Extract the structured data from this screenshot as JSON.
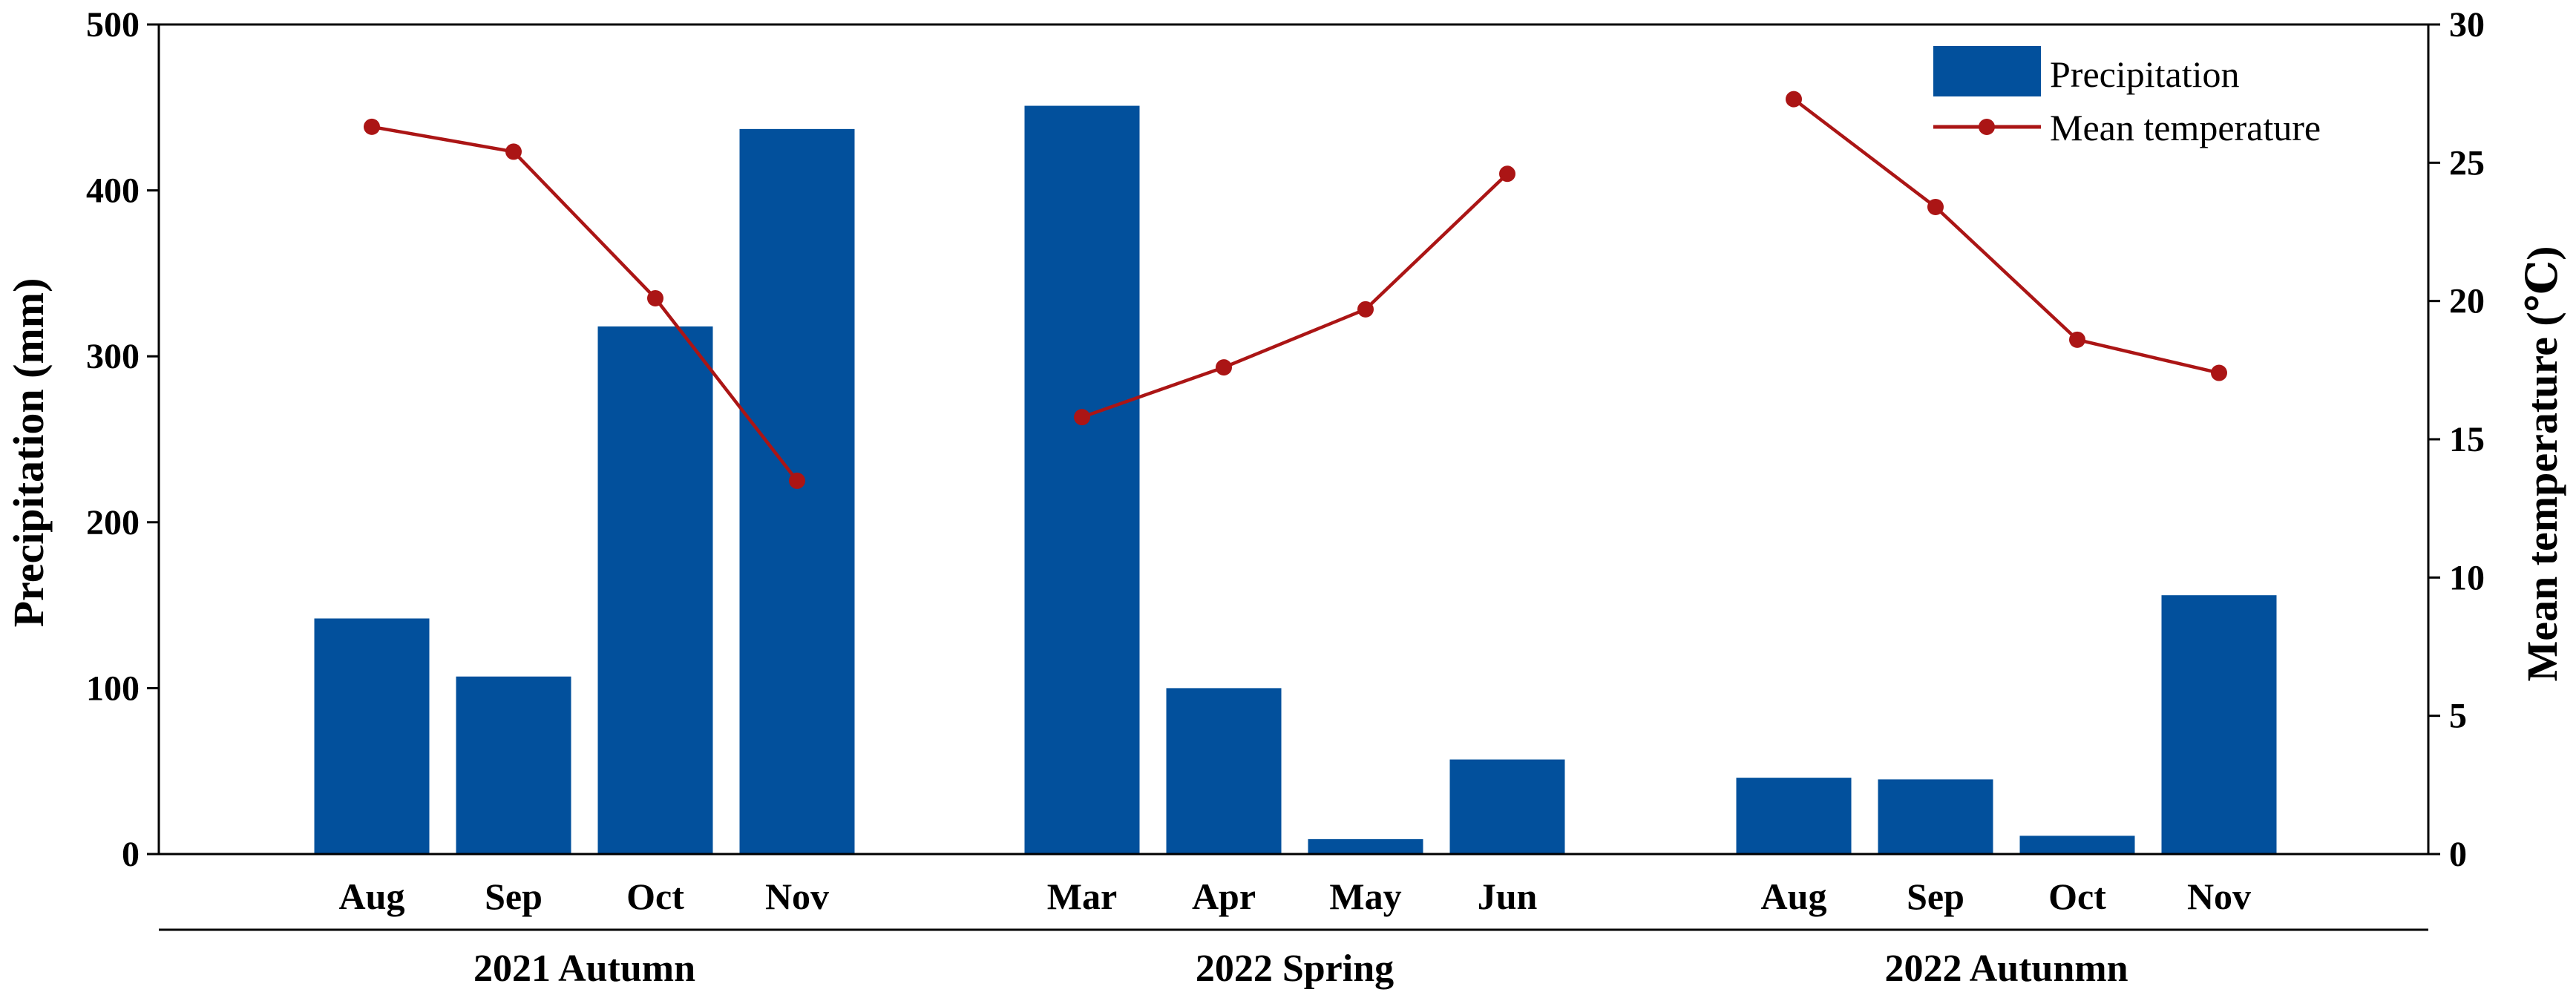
{
  "chart_data": {
    "type": "bar",
    "categories": [
      "Aug",
      "Sep",
      "Oct",
      "Nov",
      "Mar",
      "Apr",
      "May",
      "Jun",
      "Aug",
      "Sep",
      "Oct",
      "Nov"
    ],
    "groups": [
      {
        "label": "2021 Autumn",
        "start": 0,
        "end": 3
      },
      {
        "label": "2022 Spring",
        "start": 4,
        "end": 7
      },
      {
        "label": "2022 Autunmn",
        "start": 8,
        "end": 11
      }
    ],
    "series": [
      {
        "name": "Precipitation",
        "kind": "bar",
        "axis": "left",
        "color": "#02509c",
        "values": [
          142,
          107,
          318,
          437,
          451,
          100,
          9,
          57,
          46,
          45,
          11,
          156
        ]
      },
      {
        "name": "Mean temperature",
        "kind": "line",
        "axis": "right",
        "color": "#ab1515",
        "segments": [
          {
            "indices": [
              0,
              1,
              2,
              3
            ],
            "values": [
              26.3,
              25.4,
              20.1,
              13.5
            ]
          },
          {
            "indices": [
              4,
              5,
              6,
              7
            ],
            "values": [
              15.8,
              17.6,
              19.7,
              24.6
            ]
          },
          {
            "indices": [
              8,
              9,
              10,
              11
            ],
            "values": [
              27.3,
              23.4,
              18.6,
              17.4
            ]
          }
        ]
      }
    ],
    "ylabel": "Precipitation (mm)",
    "y2label": "Mean temperature (℃)",
    "ylim": [
      0,
      500
    ],
    "y2lim": [
      0,
      30
    ],
    "yticks": [
      0,
      100,
      200,
      300,
      400,
      500
    ],
    "y2ticks": [
      0,
      5,
      10,
      15,
      20,
      25,
      30
    ],
    "legend": {
      "placement": "top-right",
      "items": [
        {
          "label": "Precipitation",
          "kind": "bar"
        },
        {
          "label": "Mean temperature",
          "kind": "line"
        }
      ]
    },
    "grid": false
  }
}
